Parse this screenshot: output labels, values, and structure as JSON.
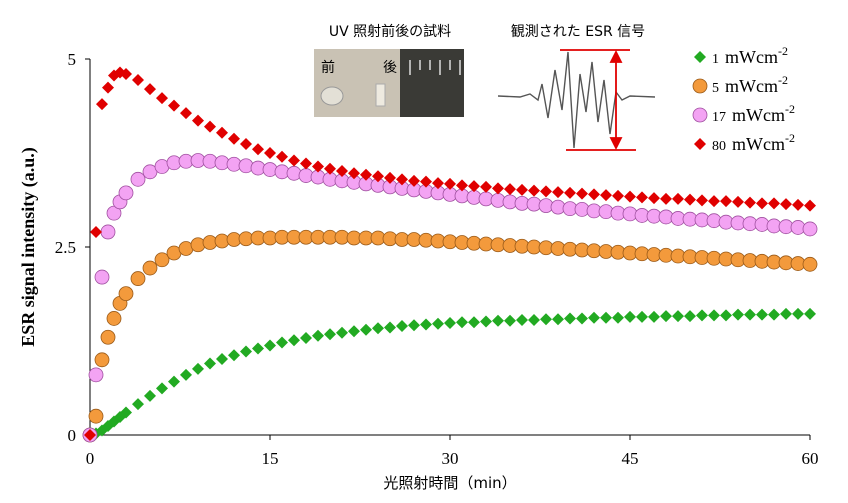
{
  "chart_data": {
    "type": "scatter",
    "xlabel": "光照射時間（min）",
    "ylabel": "ESR signal intensity (a.u.)",
    "inset_title_left": "UV 照射前後の試料",
    "inset_title_right": "観測された ESR 信号",
    "inset_before": "前",
    "inset_after": "後",
    "legend_unit": "mWcm",
    "legend_unit_exp": "-2",
    "legend": "upper right",
    "xlim": [
      0,
      60
    ],
    "xticks": [
      0,
      15,
      30,
      45,
      60
    ],
    "ylim": [
      0,
      5
    ],
    "yticks": [
      0,
      2.5,
      5
    ],
    "x": [
      0,
      0.5,
      1,
      1.5,
      2,
      2.5,
      3,
      4,
      5,
      6,
      7,
      8,
      9,
      10,
      11,
      12,
      13,
      14,
      15,
      16,
      17,
      18,
      19,
      20,
      21,
      22,
      23,
      24,
      25,
      26,
      27,
      28,
      29,
      30,
      31,
      32,
      33,
      34,
      35,
      36,
      37,
      38,
      39,
      40,
      41,
      42,
      43,
      44,
      45,
      46,
      47,
      48,
      49,
      50,
      51,
      52,
      53,
      54,
      55,
      56,
      57,
      58,
      59,
      60
    ],
    "series": [
      {
        "name": "1",
        "color": "#22aa22",
        "marker": "diamond",
        "values": [
          0,
          0.02,
          0.06,
          0.12,
          0.18,
          0.24,
          0.3,
          0.41,
          0.52,
          0.62,
          0.71,
          0.8,
          0.88,
          0.95,
          1.01,
          1.06,
          1.11,
          1.15,
          1.19,
          1.23,
          1.26,
          1.29,
          1.32,
          1.34,
          1.36,
          1.38,
          1.4,
          1.42,
          1.43,
          1.45,
          1.46,
          1.47,
          1.48,
          1.49,
          1.5,
          1.5,
          1.51,
          1.52,
          1.52,
          1.53,
          1.53,
          1.54,
          1.54,
          1.55,
          1.55,
          1.56,
          1.56,
          1.56,
          1.57,
          1.57,
          1.57,
          1.58,
          1.58,
          1.58,
          1.59,
          1.59,
          1.59,
          1.6,
          1.6,
          1.6,
          1.6,
          1.61,
          1.61,
          1.61
        ]
      },
      {
        "name": "5",
        "color": "#f39a3c",
        "marker": "circle",
        "values": [
          0,
          0.25,
          1.0,
          1.3,
          1.55,
          1.75,
          1.88,
          2.08,
          2.22,
          2.33,
          2.42,
          2.48,
          2.53,
          2.56,
          2.58,
          2.6,
          2.61,
          2.62,
          2.62,
          2.63,
          2.63,
          2.63,
          2.63,
          2.63,
          2.63,
          2.62,
          2.62,
          2.62,
          2.61,
          2.6,
          2.6,
          2.59,
          2.58,
          2.57,
          2.56,
          2.55,
          2.54,
          2.53,
          2.52,
          2.51,
          2.5,
          2.49,
          2.48,
          2.47,
          2.46,
          2.45,
          2.44,
          2.43,
          2.42,
          2.41,
          2.4,
          2.39,
          2.38,
          2.37,
          2.36,
          2.35,
          2.34,
          2.33,
          2.32,
          2.31,
          2.3,
          2.29,
          2.28,
          2.27
        ]
      },
      {
        "name": "17",
        "color": "#f3a3f3",
        "marker": "circle",
        "values": [
          0,
          0.8,
          2.1,
          2.7,
          2.95,
          3.1,
          3.22,
          3.4,
          3.5,
          3.57,
          3.62,
          3.64,
          3.65,
          3.64,
          3.62,
          3.6,
          3.58,
          3.55,
          3.53,
          3.5,
          3.48,
          3.45,
          3.43,
          3.4,
          3.38,
          3.36,
          3.34,
          3.32,
          3.3,
          3.28,
          3.26,
          3.24,
          3.22,
          3.2,
          3.18,
          3.16,
          3.14,
          3.12,
          3.1,
          3.08,
          3.07,
          3.05,
          3.03,
          3.01,
          3.0,
          2.98,
          2.97,
          2.95,
          2.94,
          2.92,
          2.91,
          2.9,
          2.88,
          2.87,
          2.86,
          2.85,
          2.83,
          2.82,
          2.81,
          2.8,
          2.78,
          2.77,
          2.76,
          2.74
        ]
      },
      {
        "name": "80",
        "color": "#e00000",
        "marker": "diamond",
        "values": [
          0,
          2.7,
          4.4,
          4.62,
          4.78,
          4.82,
          4.8,
          4.72,
          4.6,
          4.48,
          4.38,
          4.28,
          4.18,
          4.1,
          4.02,
          3.94,
          3.87,
          3.8,
          3.75,
          3.7,
          3.65,
          3.61,
          3.57,
          3.54,
          3.51,
          3.48,
          3.46,
          3.44,
          3.42,
          3.4,
          3.38,
          3.37,
          3.35,
          3.34,
          3.32,
          3.31,
          3.3,
          3.28,
          3.27,
          3.26,
          3.25,
          3.24,
          3.23,
          3.22,
          3.21,
          3.2,
          3.19,
          3.18,
          3.17,
          3.16,
          3.15,
          3.14,
          3.14,
          3.13,
          3.12,
          3.11,
          3.11,
          3.1,
          3.09,
          3.08,
          3.08,
          3.07,
          3.06,
          3.05
        ]
      }
    ]
  }
}
